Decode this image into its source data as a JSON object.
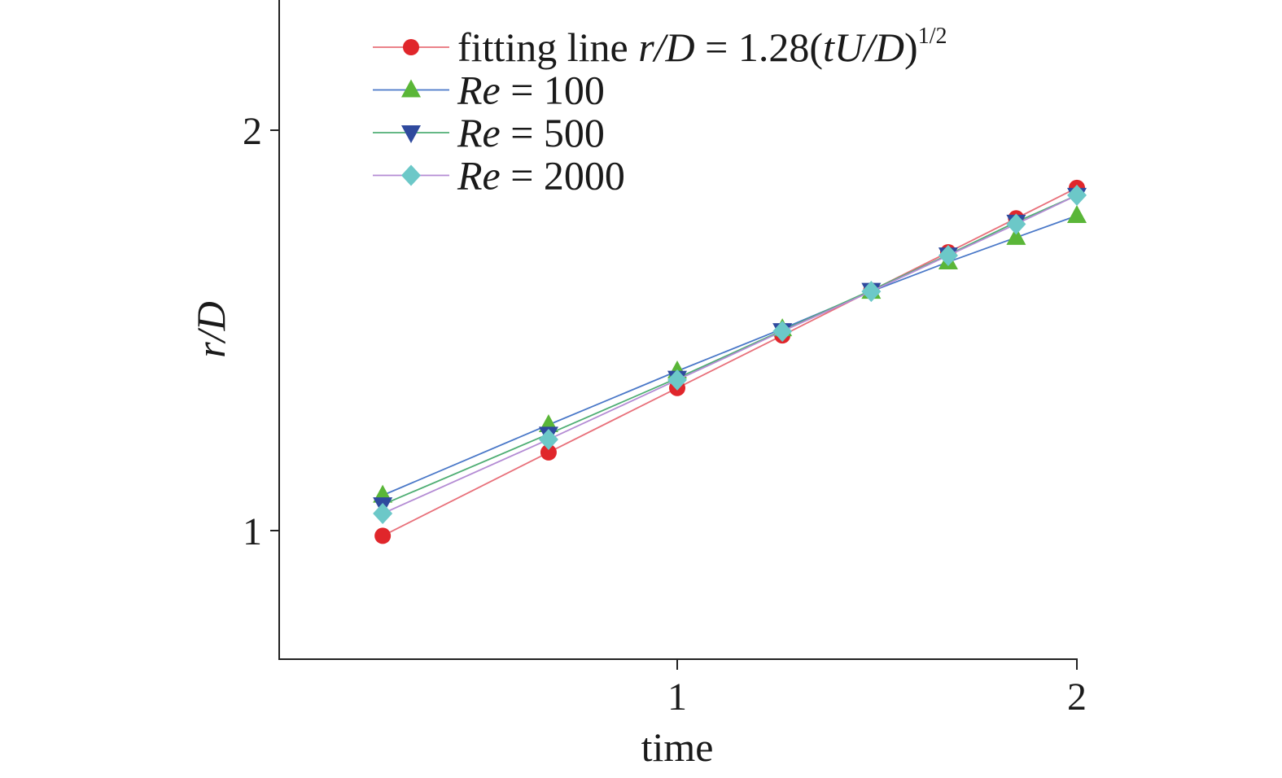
{
  "chart_data": {
    "type": "line",
    "xlabel": "time",
    "ylabel": "r/D",
    "x_scale": "log",
    "y_scale": "log",
    "xlim": [
      0.5,
      2
    ],
    "ylim": [
      0.8,
      2.5
    ],
    "x_ticks": [
      1,
      2
    ],
    "y_ticks": [
      1,
      2
    ],
    "grid": false,
    "legend_position": "top-left",
    "x": [
      0.6,
      0.8,
      1.0,
      1.2,
      1.4,
      1.6,
      1.8,
      2.0
    ],
    "series": [
      {
        "name": "fitting line r/D = 1.28(tU/D)^1/2",
        "legend_segments": [
          {
            "text": "fitting line ",
            "italic": false
          },
          {
            "text": "r/D",
            "italic": true
          },
          {
            "text": " = 1.28(",
            "italic": false
          },
          {
            "text": "tU/D",
            "italic": true
          },
          {
            "text": ")",
            "italic": false
          },
          {
            "text": "1/2",
            "italic": false,
            "sup": true
          }
        ],
        "marker": "circle",
        "marker_color": "#e0262b",
        "line_color": "#e8707a",
        "values": [
          0.991,
          1.145,
          1.28,
          1.402,
          1.515,
          1.619,
          1.717,
          1.81
        ]
      },
      {
        "name": "Re = 100",
        "legend_segments": [
          {
            "text": "Re",
            "italic": true
          },
          {
            "text": " = 100",
            "italic": false
          }
        ],
        "marker": "triangle-up",
        "marker_color": "#5ab638",
        "line_color": "#4a78c8",
        "values": [
          1.063,
          1.201,
          1.318,
          1.418,
          1.513,
          1.592,
          1.661,
          1.725
        ]
      },
      {
        "name": "Re = 500",
        "legend_segments": [
          {
            "text": "Re",
            "italic": true
          },
          {
            "text": " = 500",
            "italic": false
          }
        ],
        "marker": "triangle-down",
        "marker_color": "#2f4a9e",
        "line_color": "#4fae74",
        "values": [
          1.046,
          1.182,
          1.302,
          1.414,
          1.516,
          1.612,
          1.706,
          1.787
        ]
      },
      {
        "name": "Re = 2000",
        "legend_segments": [
          {
            "text": "Re",
            "italic": true
          },
          {
            "text": " = 2000",
            "italic": false
          }
        ],
        "marker": "diamond",
        "marker_color": "#6cc8c8",
        "line_color": "#b48cd4",
        "values": [
          1.03,
          1.171,
          1.298,
          1.412,
          1.513,
          1.61,
          1.7,
          1.787
        ]
      }
    ]
  }
}
